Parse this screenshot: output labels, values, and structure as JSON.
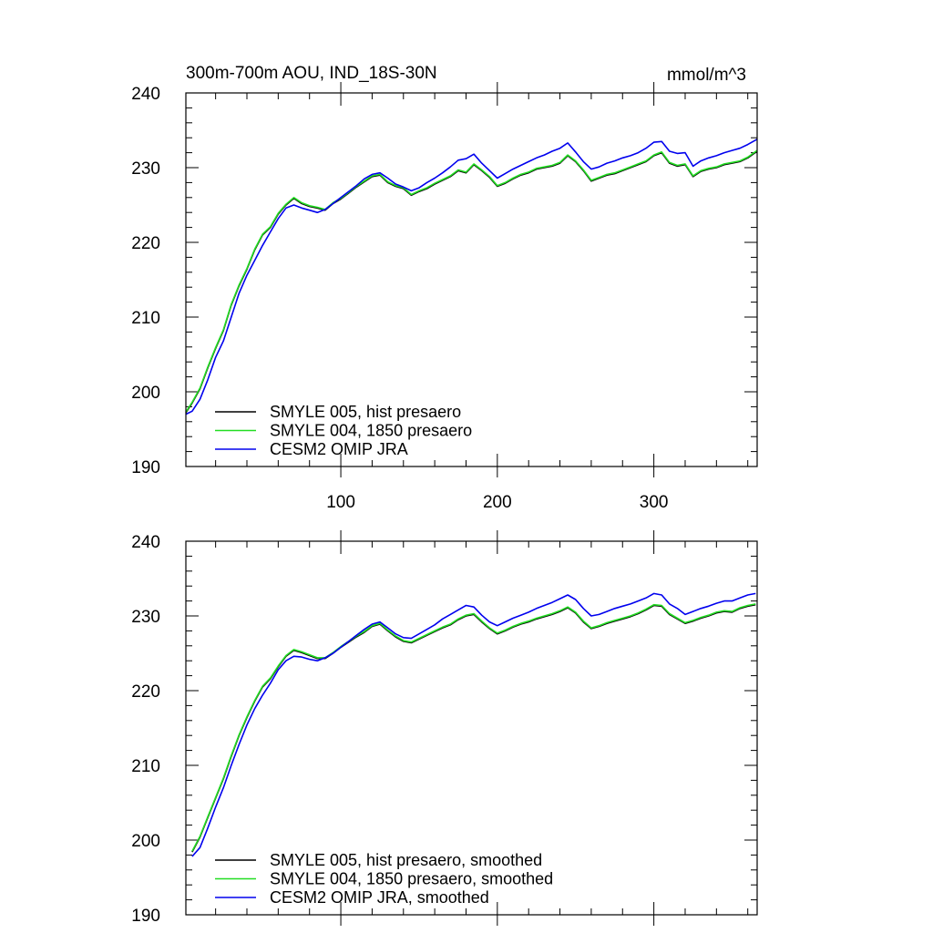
{
  "chart_data": [
    {
      "type": "line",
      "title": "300m-700m AOU, IND_18S-30N",
      "units": "mmol/m^3",
      "xlim": [
        1,
        366
      ],
      "ylim": [
        190,
        240
      ],
      "yticks": [
        190,
        200,
        210,
        220,
        230,
        240
      ],
      "xticks": [
        100,
        200,
        300
      ],
      "legend_position": "bottom-left",
      "series": [
        {
          "name": "SMYLE 005, hist presaero",
          "color": "#000000",
          "x": [
            1,
            5,
            10,
            15,
            20,
            25,
            30,
            35,
            40,
            45,
            50,
            55,
            60,
            65,
            70,
            75,
            80,
            85,
            90,
            95,
            100,
            105,
            110,
            115,
            120,
            125,
            130,
            135,
            140,
            145,
            150,
            155,
            160,
            165,
            170,
            175,
            180,
            185,
            190,
            195,
            200,
            205,
            210,
            215,
            220,
            225,
            230,
            235,
            240,
            245,
            250,
            255,
            260,
            265,
            270,
            275,
            280,
            285,
            290,
            295,
            300,
            305,
            310,
            315,
            320,
            325,
            330,
            335,
            340,
            345,
            350,
            355,
            360,
            366
          ],
          "y": [
            197.2,
            198.5,
            200.4,
            203.2,
            205.8,
            208.2,
            211.6,
            214.2,
            216.4,
            219.0,
            221.0,
            222.0,
            223.8,
            225.0,
            225.9,
            225.2,
            224.8,
            224.6,
            224.3,
            225.2,
            225.8,
            226.6,
            227.4,
            228.1,
            228.8,
            229.0,
            228.0,
            227.5,
            227.2,
            226.3,
            226.8,
            227.2,
            227.8,
            228.3,
            228.8,
            229.6,
            229.3,
            230.4,
            229.6,
            228.7,
            227.5,
            227.9,
            228.5,
            229.0,
            229.3,
            229.8,
            230.0,
            230.2,
            230.6,
            231.6,
            230.8,
            229.6,
            228.2,
            228.6,
            229.0,
            229.2,
            229.6,
            230.0,
            230.4,
            230.8,
            231.6,
            232.0,
            230.6,
            230.2,
            230.4,
            228.8,
            229.5,
            229.8,
            230.0,
            230.4,
            230.6,
            230.8,
            231.3,
            232.2
          ]
        },
        {
          "name": "SMYLE 004, 1850 presaero",
          "color": "#22dd22",
          "x": [
            1,
            5,
            10,
            15,
            20,
            25,
            30,
            35,
            40,
            45,
            50,
            55,
            60,
            65,
            70,
            75,
            80,
            85,
            90,
            95,
            100,
            105,
            110,
            115,
            120,
            125,
            130,
            135,
            140,
            145,
            150,
            155,
            160,
            165,
            170,
            175,
            180,
            185,
            190,
            195,
            200,
            205,
            210,
            215,
            220,
            225,
            230,
            235,
            240,
            245,
            250,
            255,
            260,
            265,
            270,
            275,
            280,
            285,
            290,
            295,
            300,
            305,
            310,
            315,
            320,
            325,
            330,
            335,
            340,
            345,
            350,
            355,
            360,
            366
          ],
          "y": [
            197.3,
            198.6,
            200.5,
            203.3,
            205.9,
            208.3,
            211.7,
            214.3,
            216.5,
            219.1,
            221.1,
            222.1,
            223.9,
            225.1,
            226.0,
            225.3,
            224.9,
            224.7,
            224.4,
            225.3,
            225.9,
            226.7,
            227.5,
            228.2,
            228.9,
            229.1,
            228.1,
            227.6,
            227.3,
            226.4,
            226.9,
            227.3,
            227.9,
            228.4,
            228.9,
            229.7,
            229.4,
            230.5,
            229.7,
            228.8,
            227.6,
            228.0,
            228.6,
            229.1,
            229.4,
            229.9,
            230.1,
            230.3,
            230.7,
            231.7,
            230.9,
            229.7,
            228.3,
            228.7,
            229.1,
            229.3,
            229.7,
            230.1,
            230.5,
            230.9,
            231.7,
            232.1,
            230.7,
            230.3,
            230.5,
            228.9,
            229.6,
            229.9,
            230.1,
            230.5,
            230.7,
            230.9,
            231.4,
            232.3
          ]
        },
        {
          "name": "CESM2 OMIP JRA",
          "color": "#0000ee",
          "x": [
            1,
            5,
            10,
            15,
            20,
            25,
            30,
            35,
            40,
            45,
            50,
            55,
            60,
            65,
            70,
            75,
            80,
            85,
            90,
            95,
            100,
            105,
            110,
            115,
            120,
            125,
            130,
            135,
            140,
            145,
            150,
            155,
            160,
            165,
            170,
            175,
            180,
            185,
            190,
            195,
            200,
            205,
            210,
            215,
            220,
            225,
            230,
            235,
            240,
            245,
            250,
            255,
            260,
            265,
            270,
            275,
            280,
            285,
            290,
            295,
            300,
            305,
            310,
            315,
            320,
            325,
            330,
            335,
            340,
            345,
            350,
            355,
            360,
            366
          ],
          "y": [
            197.0,
            197.4,
            199.0,
            201.6,
            204.6,
            206.8,
            210.0,
            213.2,
            215.6,
            217.6,
            219.6,
            221.4,
            223.2,
            224.6,
            225.0,
            224.6,
            224.3,
            224.0,
            224.4,
            225.2,
            226.0,
            226.8,
            227.6,
            228.5,
            229.1,
            229.3,
            228.6,
            227.8,
            227.4,
            226.9,
            227.3,
            228.0,
            228.6,
            229.3,
            230.1,
            231.0,
            231.2,
            231.8,
            230.6,
            229.6,
            228.6,
            229.2,
            229.8,
            230.3,
            230.8,
            231.3,
            231.7,
            232.2,
            232.6,
            233.3,
            232.1,
            230.8,
            229.8,
            230.1,
            230.6,
            230.9,
            231.3,
            231.6,
            232.0,
            232.6,
            233.4,
            233.5,
            232.2,
            231.9,
            232.0,
            230.2,
            230.9,
            231.3,
            231.6,
            232.0,
            232.3,
            232.6,
            233.1,
            233.8
          ]
        }
      ]
    },
    {
      "type": "line",
      "title": "",
      "xlim": [
        1,
        366
      ],
      "ylim": [
        190,
        240
      ],
      "yticks": [
        190,
        200,
        210,
        220,
        230,
        240
      ],
      "legend_position": "bottom-left",
      "series": [
        {
          "name": "SMYLE 005, hist presaero, smoothed",
          "color": "#000000",
          "x": [
            5,
            10,
            15,
            20,
            25,
            30,
            35,
            40,
            45,
            50,
            55,
            60,
            65,
            70,
            75,
            80,
            85,
            90,
            95,
            100,
            105,
            110,
            115,
            120,
            125,
            130,
            135,
            140,
            145,
            150,
            155,
            160,
            165,
            170,
            175,
            180,
            185,
            190,
            195,
            200,
            205,
            210,
            215,
            220,
            225,
            230,
            235,
            240,
            245,
            250,
            255,
            260,
            265,
            270,
            275,
            280,
            285,
            290,
            295,
            300,
            305,
            310,
            315,
            320,
            325,
            330,
            335,
            340,
            345,
            350,
            355,
            360,
            365
          ],
          "y": [
            198.4,
            200.4,
            203.0,
            205.6,
            208.2,
            211.2,
            214.0,
            216.4,
            218.6,
            220.5,
            221.6,
            223.2,
            224.6,
            225.4,
            225.1,
            224.7,
            224.3,
            224.3,
            225.0,
            225.8,
            226.5,
            227.2,
            227.8,
            228.6,
            228.9,
            228.0,
            227.2,
            226.6,
            226.4,
            226.9,
            227.4,
            227.9,
            228.4,
            228.8,
            229.5,
            230.0,
            230.2,
            229.2,
            228.3,
            227.6,
            228.0,
            228.5,
            228.9,
            229.2,
            229.6,
            229.9,
            230.2,
            230.6,
            231.1,
            230.4,
            229.2,
            228.3,
            228.6,
            229.0,
            229.3,
            229.6,
            229.9,
            230.3,
            230.8,
            231.4,
            231.3,
            230.2,
            229.6,
            229.0,
            229.3,
            229.7,
            230.0,
            230.4,
            230.6,
            230.5,
            231.0,
            231.3,
            231.5
          ]
        },
        {
          "name": "SMYLE 004, 1850 presaero, smoothed",
          "color": "#22dd22",
          "x": [
            5,
            10,
            15,
            20,
            25,
            30,
            35,
            40,
            45,
            50,
            55,
            60,
            65,
            70,
            75,
            80,
            85,
            90,
            95,
            100,
            105,
            110,
            115,
            120,
            125,
            130,
            135,
            140,
            145,
            150,
            155,
            160,
            165,
            170,
            175,
            180,
            185,
            190,
            195,
            200,
            205,
            210,
            215,
            220,
            225,
            230,
            235,
            240,
            245,
            250,
            255,
            260,
            265,
            270,
            275,
            280,
            285,
            290,
            295,
            300,
            305,
            310,
            315,
            320,
            325,
            330,
            335,
            340,
            345,
            350,
            355,
            360,
            365
          ],
          "y": [
            198.5,
            200.5,
            203.1,
            205.7,
            208.3,
            211.3,
            214.1,
            216.5,
            218.7,
            220.6,
            221.7,
            223.3,
            224.7,
            225.5,
            225.2,
            224.8,
            224.4,
            224.4,
            225.1,
            225.9,
            226.6,
            227.3,
            227.9,
            228.7,
            229.0,
            228.1,
            227.3,
            226.7,
            226.5,
            227.0,
            227.5,
            228.0,
            228.5,
            228.9,
            229.6,
            230.1,
            230.3,
            229.3,
            228.4,
            227.7,
            228.1,
            228.6,
            229.0,
            229.3,
            229.7,
            230.0,
            230.3,
            230.7,
            231.2,
            230.5,
            229.3,
            228.4,
            228.7,
            229.1,
            229.4,
            229.7,
            230.0,
            230.4,
            230.9,
            231.5,
            231.4,
            230.3,
            229.7,
            229.1,
            229.4,
            229.8,
            230.1,
            230.5,
            230.7,
            230.6,
            231.1,
            231.4,
            231.6
          ]
        },
        {
          "name": "CESM2 OMIP JRA, smoothed",
          "color": "#0000ee",
          "x": [
            5,
            10,
            15,
            20,
            25,
            30,
            35,
            40,
            45,
            50,
            55,
            60,
            65,
            70,
            75,
            80,
            85,
            90,
            95,
            100,
            105,
            110,
            115,
            120,
            125,
            130,
            135,
            140,
            145,
            150,
            155,
            160,
            165,
            170,
            175,
            180,
            185,
            190,
            195,
            200,
            205,
            210,
            215,
            220,
            225,
            230,
            235,
            240,
            245,
            250,
            255,
            260,
            265,
            270,
            275,
            280,
            285,
            290,
            295,
            300,
            305,
            310,
            315,
            320,
            325,
            330,
            335,
            340,
            345,
            350,
            355,
            360,
            365
          ],
          "y": [
            197.8,
            199.0,
            201.6,
            204.4,
            207.0,
            210.0,
            212.8,
            215.4,
            217.6,
            219.4,
            221.0,
            222.8,
            224.0,
            224.6,
            224.5,
            224.2,
            224.0,
            224.4,
            225.0,
            225.8,
            226.6,
            227.4,
            228.2,
            228.9,
            229.2,
            228.4,
            227.6,
            227.1,
            227.0,
            227.6,
            228.2,
            228.8,
            229.6,
            230.2,
            230.8,
            231.4,
            231.2,
            230.1,
            229.2,
            228.7,
            229.2,
            229.7,
            230.1,
            230.5,
            231.0,
            231.4,
            231.8,
            232.3,
            232.8,
            232.2,
            231.0,
            230.0,
            230.2,
            230.6,
            231.0,
            231.3,
            231.6,
            232.0,
            232.4,
            233.0,
            232.8,
            231.6,
            231.0,
            230.2,
            230.6,
            231.0,
            231.3,
            231.7,
            232.0,
            232.0,
            232.4,
            232.8,
            233.0
          ]
        }
      ]
    }
  ]
}
